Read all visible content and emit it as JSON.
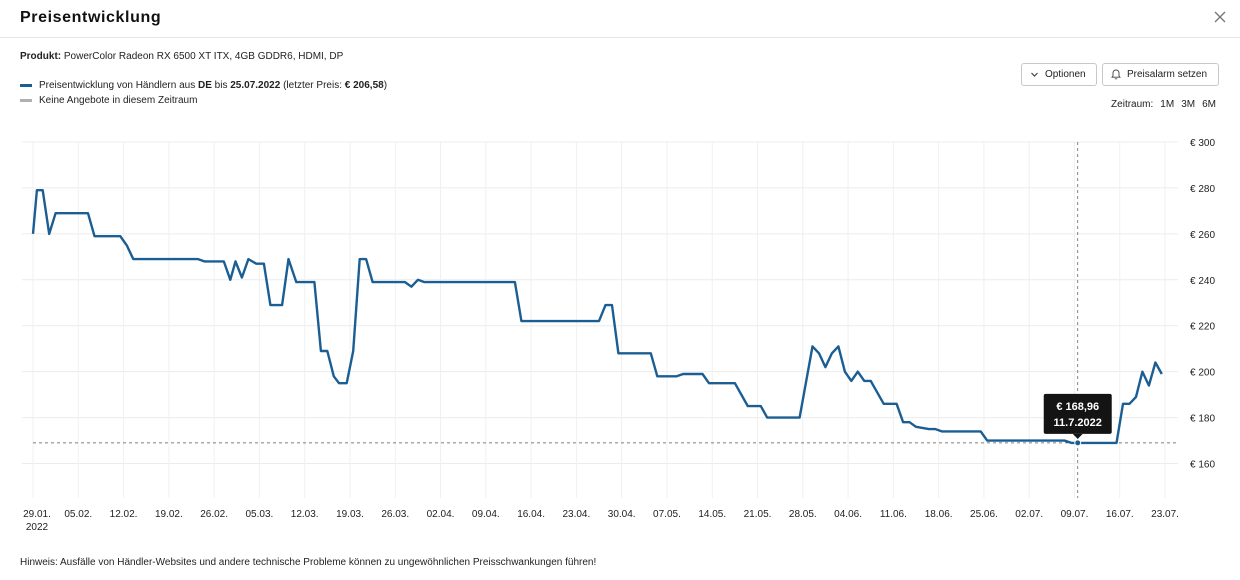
{
  "dialog": {
    "title": "Preisentwicklung",
    "close_icon": "close-icon"
  },
  "product": {
    "label": "Produkt:",
    "name": "PowerColor Radeon RX 6500 XT ITX, 4GB GDDR6, HDMI, DP"
  },
  "legend": {
    "series_prefix": "Preisentwicklung von Händlern aus ",
    "country": "DE",
    "until_word": " bis ",
    "date": "25.07.2022",
    "last_price_prefix": " (letzter Preis: ",
    "last_price": "€ 206,58",
    "last_price_suffix": ")",
    "series_color": "#1b5e93",
    "no_offers": "Keine Angebote in diesem Zeitraum",
    "no_offers_color": "#b0b0b0"
  },
  "buttons": {
    "options": "Optionen",
    "price_alert": "Preisalarm setzen"
  },
  "range": {
    "label": "Zeitraum:",
    "options": [
      "1M",
      "3M",
      "6M"
    ]
  },
  "tooltip": {
    "price": "€ 168,96",
    "date": "11.7.2022"
  },
  "hint": "Hinweis: Ausfälle von Händler-Websites und andere technische Probleme können zu ungewöhnlichen Preisschwankungen führen!",
  "chart_data": {
    "type": "line",
    "ylim": [
      145,
      300
    ],
    "yticks": [
      160,
      180,
      200,
      220,
      240,
      260,
      280,
      300
    ],
    "ytick_labels": [
      "€ 160",
      "€ 180",
      "€ 200",
      "€ 220",
      "€ 240",
      "€ 260",
      "€ 280",
      "€ 300"
    ],
    "xlim": [
      0,
      177
    ],
    "xticks": [
      {
        "x": 0,
        "label": "29.01.",
        "sub": "2022"
      },
      {
        "x": 7,
        "label": "05.02."
      },
      {
        "x": 14,
        "label": "12.02."
      },
      {
        "x": 21,
        "label": "19.02."
      },
      {
        "x": 28,
        "label": "26.02."
      },
      {
        "x": 35,
        "label": "05.03."
      },
      {
        "x": 42,
        "label": "12.03."
      },
      {
        "x": 49,
        "label": "19.03."
      },
      {
        "x": 56,
        "label": "26.03."
      },
      {
        "x": 63,
        "label": "02.04."
      },
      {
        "x": 70,
        "label": "09.04."
      },
      {
        "x": 77,
        "label": "16.04."
      },
      {
        "x": 84,
        "label": "23.04."
      },
      {
        "x": 91,
        "label": "30.04."
      },
      {
        "x": 98,
        "label": "07.05."
      },
      {
        "x": 105,
        "label": "14.05."
      },
      {
        "x": 112,
        "label": "21.05."
      },
      {
        "x": 119,
        "label": "28.05."
      },
      {
        "x": 126,
        "label": "04.06."
      },
      {
        "x": 133,
        "label": "11.06."
      },
      {
        "x": 140,
        "label": "18.06."
      },
      {
        "x": 147,
        "label": "25.06."
      },
      {
        "x": 154,
        "label": "02.07."
      },
      {
        "x": 161,
        "label": "09.07."
      },
      {
        "x": 168,
        "label": "16.07."
      },
      {
        "x": 175,
        "label": "23.07."
      }
    ],
    "series": [
      {
        "color": "#1b5e93",
        "points": [
          [
            0,
            260
          ],
          [
            0.6,
            279
          ],
          [
            1.5,
            279
          ],
          [
            2.5,
            260
          ],
          [
            3.5,
            269
          ],
          [
            8.5,
            269
          ],
          [
            9.5,
            259
          ],
          [
            13.5,
            259
          ],
          [
            14.5,
            255
          ],
          [
            15.5,
            249
          ],
          [
            25.5,
            249
          ],
          [
            26.5,
            248
          ],
          [
            29.5,
            248
          ],
          [
            30.5,
            240
          ],
          [
            31.3,
            248
          ],
          [
            32.3,
            241
          ],
          [
            33.3,
            249
          ],
          [
            34.5,
            247
          ],
          [
            35.7,
            247
          ],
          [
            36.7,
            229
          ],
          [
            38.5,
            229
          ],
          [
            39.5,
            249
          ],
          [
            40.7,
            239
          ],
          [
            43.5,
            239
          ],
          [
            44.5,
            209
          ],
          [
            45.5,
            209
          ],
          [
            46.5,
            198
          ],
          [
            47.3,
            195
          ],
          [
            48.5,
            195
          ],
          [
            49.5,
            209
          ],
          [
            50.5,
            249
          ],
          [
            51.5,
            249
          ],
          [
            52.5,
            239
          ],
          [
            57.5,
            239
          ],
          [
            58.5,
            237
          ],
          [
            59.5,
            240
          ],
          [
            60.5,
            239
          ],
          [
            74.5,
            239
          ],
          [
            75.5,
            222
          ],
          [
            87.5,
            222
          ],
          [
            88.5,
            229
          ],
          [
            89.5,
            229
          ],
          [
            90.5,
            208
          ],
          [
            95.5,
            208
          ],
          [
            96.5,
            198
          ],
          [
            99.5,
            198
          ],
          [
            100.5,
            199
          ],
          [
            103.5,
            199
          ],
          [
            104.5,
            195
          ],
          [
            108.5,
            195
          ],
          [
            110.5,
            185
          ],
          [
            112.5,
            185
          ],
          [
            113.5,
            180
          ],
          [
            118.5,
            180
          ],
          [
            120.5,
            211
          ],
          [
            121.5,
            208
          ],
          [
            122.5,
            202
          ],
          [
            123.5,
            208
          ],
          [
            124.5,
            211
          ],
          [
            125.5,
            200
          ],
          [
            126.5,
            196
          ],
          [
            127.5,
            200
          ],
          [
            128.5,
            196
          ],
          [
            129.5,
            196
          ],
          [
            131.5,
            186
          ],
          [
            133.5,
            186
          ],
          [
            134.5,
            178
          ],
          [
            135.5,
            178
          ],
          [
            136.5,
            176
          ],
          [
            138.5,
            175
          ],
          [
            139.5,
            175
          ],
          [
            140.5,
            174
          ],
          [
            145.5,
            174
          ],
          [
            146.5,
            174
          ],
          [
            147.5,
            170
          ],
          [
            159.5,
            170
          ],
          [
            160.5,
            169
          ],
          [
            166.5,
            169
          ],
          [
            167.5,
            169
          ],
          [
            168.5,
            186
          ],
          [
            169.5,
            186
          ],
          [
            170.5,
            189
          ],
          [
            171.5,
            200
          ],
          [
            172.5,
            194
          ],
          [
            173.5,
            204
          ],
          [
            174.5,
            199
          ]
        ]
      }
    ],
    "reference_line": 169,
    "crosshair_x": 161.5
  }
}
